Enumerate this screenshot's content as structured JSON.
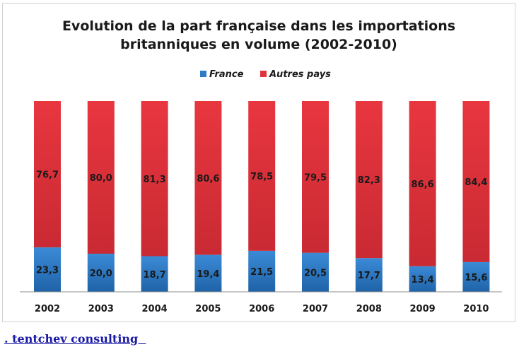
{
  "chart_data": {
    "type": "bar",
    "stacked": true,
    "title_lines": [
      "Evolution de la part française dans les importations",
      "britanniques en volume (2002-2010)"
    ],
    "categories": [
      "2002",
      "2003",
      "2004",
      "2005",
      "2006",
      "2007",
      "2008",
      "2009",
      "2010"
    ],
    "series": [
      {
        "name": "France",
        "color": "#2e7bc7",
        "values": [
          23.3,
          20.0,
          18.7,
          19.4,
          21.5,
          20.5,
          17.7,
          13.4,
          15.6
        ],
        "labels": [
          "23,3",
          "20,0",
          "18,7",
          "19,4",
          "21,5",
          "20,5",
          "17,7",
          "13,4",
          "15,6"
        ]
      },
      {
        "name": "Autres pays",
        "color": "#e0343d",
        "values": [
          76.7,
          80.0,
          81.3,
          80.6,
          78.5,
          79.5,
          82.3,
          86.6,
          84.4
        ],
        "labels": [
          "76,7",
          "80,0",
          "81,3",
          "80,6",
          "78,5",
          "79,5",
          "82,3",
          "86,6",
          "84,4"
        ]
      }
    ],
    "ylim": [
      0,
      100
    ],
    "legend_position": "top",
    "grid": false
  },
  "footer": {
    "link_text": ". tentchev consulting  "
  }
}
